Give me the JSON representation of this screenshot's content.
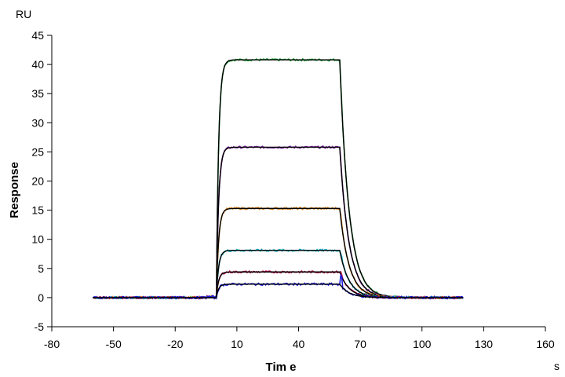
{
  "chart_data": {
    "type": "line",
    "title": "",
    "xlabel": "Tim e",
    "ylabel": "Response",
    "x_unit": "s",
    "y_unit": "RU",
    "xlim": [
      -80,
      160
    ],
    "ylim": [
      -5,
      45
    ],
    "x_ticks": [
      -80,
      -50,
      -20,
      10,
      40,
      70,
      100,
      130,
      160
    ],
    "y_ticks": [
      -5,
      0,
      5,
      10,
      15,
      20,
      25,
      30,
      35,
      40,
      45
    ],
    "grid": false,
    "legend": "none",
    "baseline_start": -60,
    "association_start": 0,
    "dissociation_start": 60,
    "end_time": 120,
    "series": [
      {
        "plateau": 40.8,
        "measured_color": "#1e9e3a",
        "fit_color": "#000000"
      },
      {
        "plateau": 25.8,
        "measured_color": "#7b1fa2",
        "fit_color": "#000000"
      },
      {
        "plateau": 15.3,
        "measured_color": "#e08a1e",
        "fit_color": "#000000"
      },
      {
        "plateau": 8.1,
        "measured_color": "#00acc1",
        "fit_color": "#000000"
      },
      {
        "plateau": 4.4,
        "measured_color": "#c2185b",
        "fit_color": "#000000"
      },
      {
        "plateau": 2.3,
        "measured_color": "#1a1adb",
        "fit_color": "#000000"
      }
    ]
  }
}
